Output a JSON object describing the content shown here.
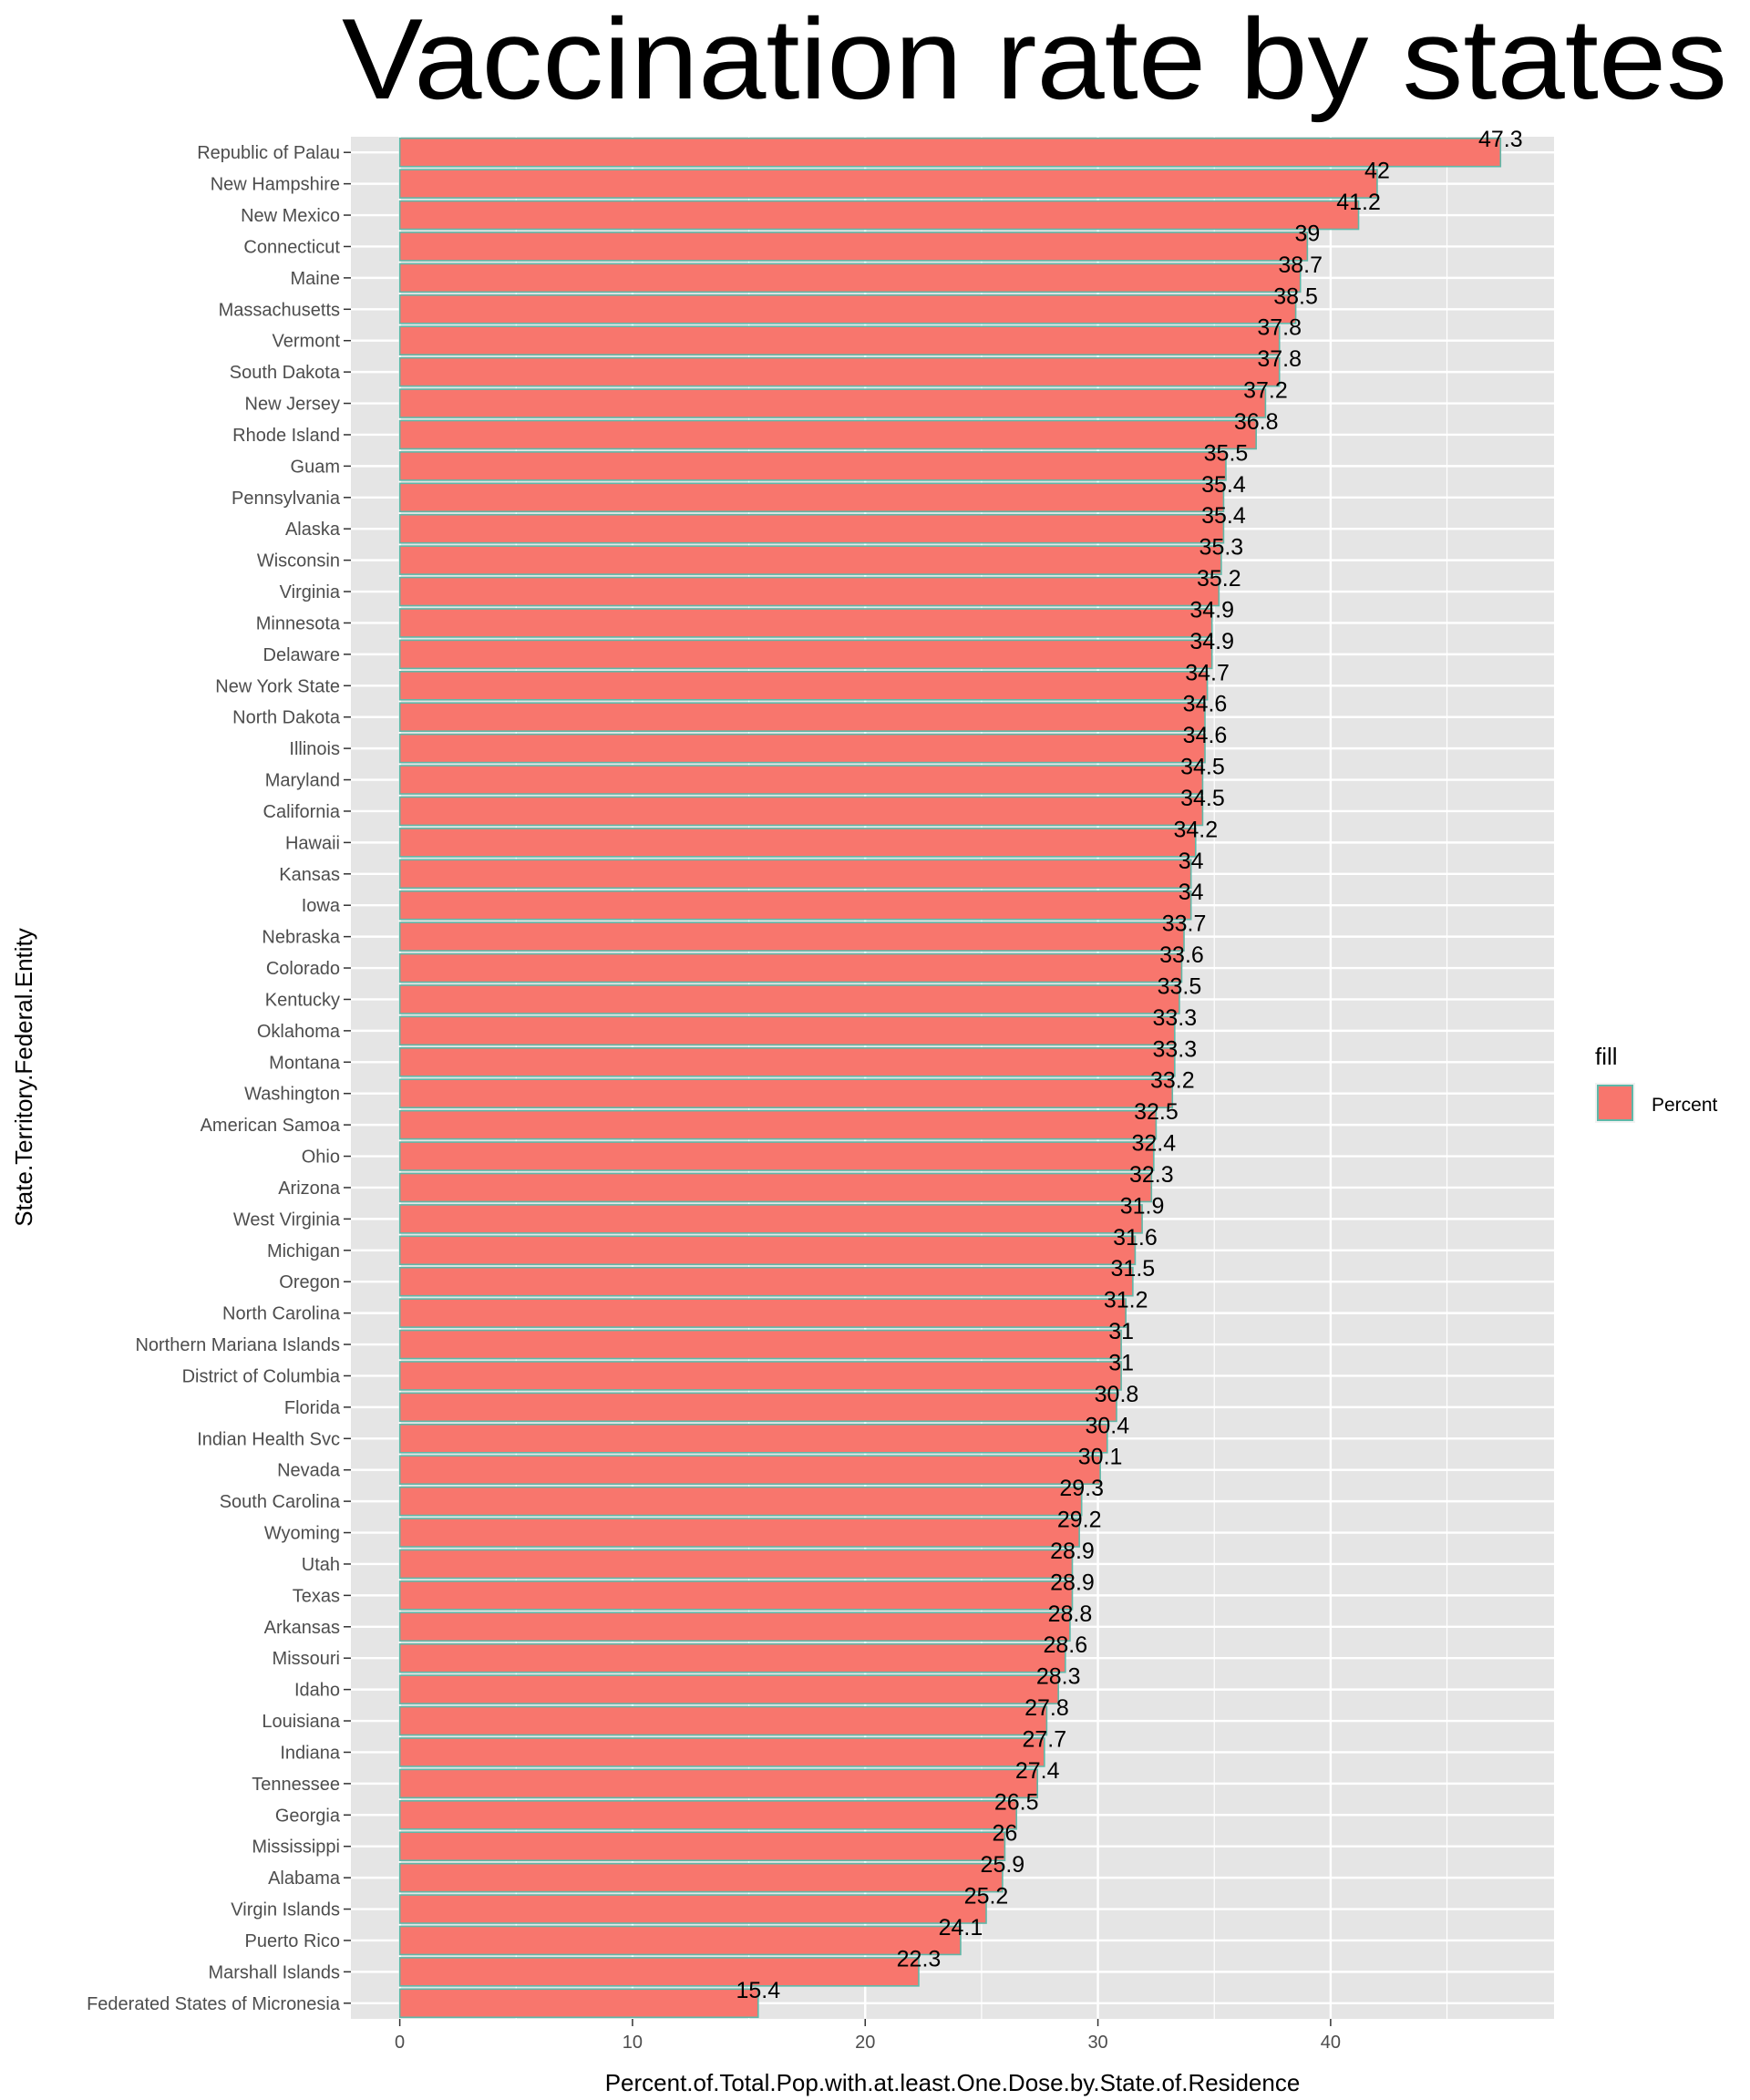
{
  "chart_data": {
    "type": "bar",
    "orientation": "horizontal",
    "title": "Vaccination rate by states",
    "xlabel": "Percent.of.Total.Pop.with.at.least.One.Dose.by.State.of.Residence",
    "ylabel": "State.Territory.Federal.Entity",
    "xlim": [
      -2.1,
      49.6
    ],
    "xticks": [
      0,
      10,
      20,
      30,
      40
    ],
    "grid": true,
    "legend": {
      "title": "fill",
      "entries": [
        "Percent"
      ],
      "placement": "right"
    },
    "colors": {
      "bar_fill": "#F8766D",
      "bar_outline": "#5FB8A8",
      "panel": "#E5E5E5",
      "gridline": "#FFFFFF"
    },
    "categories": [
      "Republic of Palau",
      "New Hampshire",
      "New Mexico",
      "Connecticut",
      "Maine",
      "Massachusetts",
      "Vermont",
      "South Dakota",
      "New Jersey",
      "Rhode Island",
      "Guam",
      "Pennsylvania",
      "Alaska",
      "Wisconsin",
      "Virginia",
      "Minnesota",
      "Delaware",
      "New York State",
      "North Dakota",
      "Illinois",
      "Maryland",
      "California",
      "Hawaii",
      "Kansas",
      "Iowa",
      "Nebraska",
      "Colorado",
      "Kentucky",
      "Oklahoma",
      "Montana",
      "Washington",
      "American Samoa",
      "Ohio",
      "Arizona",
      "West Virginia",
      "Michigan",
      "Oregon",
      "North Carolina",
      "Northern Mariana Islands",
      "District of Columbia",
      "Florida",
      "Indian Health Svc",
      "Nevada",
      "South Carolina",
      "Wyoming",
      "Utah",
      "Texas",
      "Arkansas",
      "Missouri",
      "Idaho",
      "Louisiana",
      "Indiana",
      "Tennessee",
      "Georgia",
      "Mississippi",
      "Alabama",
      "Virgin Islands",
      "Puerto Rico",
      "Marshall Islands",
      "Federated States of Micronesia"
    ],
    "values": [
      47.3,
      42,
      41.2,
      39,
      38.7,
      38.5,
      37.8,
      37.8,
      37.2,
      36.8,
      35.5,
      35.4,
      35.4,
      35.3,
      35.2,
      34.9,
      34.9,
      34.7,
      34.6,
      34.6,
      34.5,
      34.5,
      34.2,
      34,
      34,
      33.7,
      33.6,
      33.5,
      33.3,
      33.3,
      33.2,
      32.5,
      32.4,
      32.3,
      31.9,
      31.6,
      31.5,
      31.2,
      31,
      31,
      30.8,
      30.4,
      30.1,
      29.3,
      29.2,
      28.9,
      28.9,
      28.8,
      28.6,
      28.3,
      27.8,
      27.7,
      27.4,
      26.5,
      26,
      25.9,
      25.2,
      24.1,
      22.3,
      15.4
    ]
  }
}
